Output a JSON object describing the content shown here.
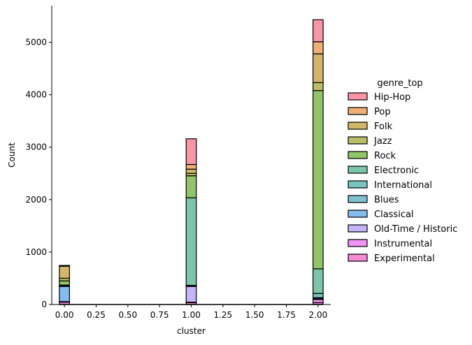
{
  "chart_data": {
    "type": "bar",
    "stacked": true,
    "xlabel": "cluster",
    "ylabel": "Count",
    "xlim": [
      -0.1,
      2.1
    ],
    "ylim": [
      0,
      5700
    ],
    "x_ticks": [
      "0.00",
      "0.25",
      "0.50",
      "0.75",
      "1.00",
      "1.25",
      "1.50",
      "1.75",
      "2.00"
    ],
    "y_ticks": [
      "0",
      "1000",
      "2000",
      "3000",
      "4000",
      "5000"
    ],
    "bin_width": 0.08,
    "clusters": [
      0,
      1,
      2
    ],
    "legend": {
      "title": "genre_top",
      "placement": "right"
    },
    "stack_order_bottom_to_top": [
      "Experimental",
      "Instrumental",
      "Old-Time / Historic",
      "Classical",
      "Blues",
      "International",
      "Electronic",
      "Rock",
      "Jazz",
      "Folk",
      "Pop",
      "Hip-Hop"
    ],
    "series": [
      {
        "name": "Hip-Hop",
        "color": "#f77189",
        "values": [
          5,
          490,
          420
        ]
      },
      {
        "name": "Pop",
        "color": "#e89646",
        "values": [
          10,
          90,
          230
        ]
      },
      {
        "name": "Folk",
        "color": "#c59e3a",
        "values": [
          230,
          80,
          550
        ]
      },
      {
        "name": "Jazz",
        "color": "#a2a834",
        "values": [
          50,
          45,
          150
        ]
      },
      {
        "name": "Rock",
        "color": "#6db038",
        "values": [
          80,
          420,
          3400
        ]
      },
      {
        "name": "Electronic",
        "color": "#4fb28b",
        "values": [
          15,
          1670,
          470
        ]
      },
      {
        "name": "International",
        "color": "#4cb0a8",
        "values": [
          5,
          10,
          80
        ]
      },
      {
        "name": "Blues",
        "color": "#50adc1",
        "values": [
          5,
          5,
          20
        ]
      },
      {
        "name": "Classical",
        "color": "#5ca6e8",
        "values": [
          290,
          5,
          10
        ]
      },
      {
        "name": "Old-Time / Historic",
        "color": "#b29bf4",
        "values": [
          5,
          300,
          5
        ]
      },
      {
        "name": "Instrumental",
        "color": "#ec6ff0",
        "values": [
          5,
          10,
          60
        ]
      },
      {
        "name": "Experimental",
        "color": "#f662c8",
        "values": [
          45,
          35,
          35
        ]
      }
    ]
  }
}
